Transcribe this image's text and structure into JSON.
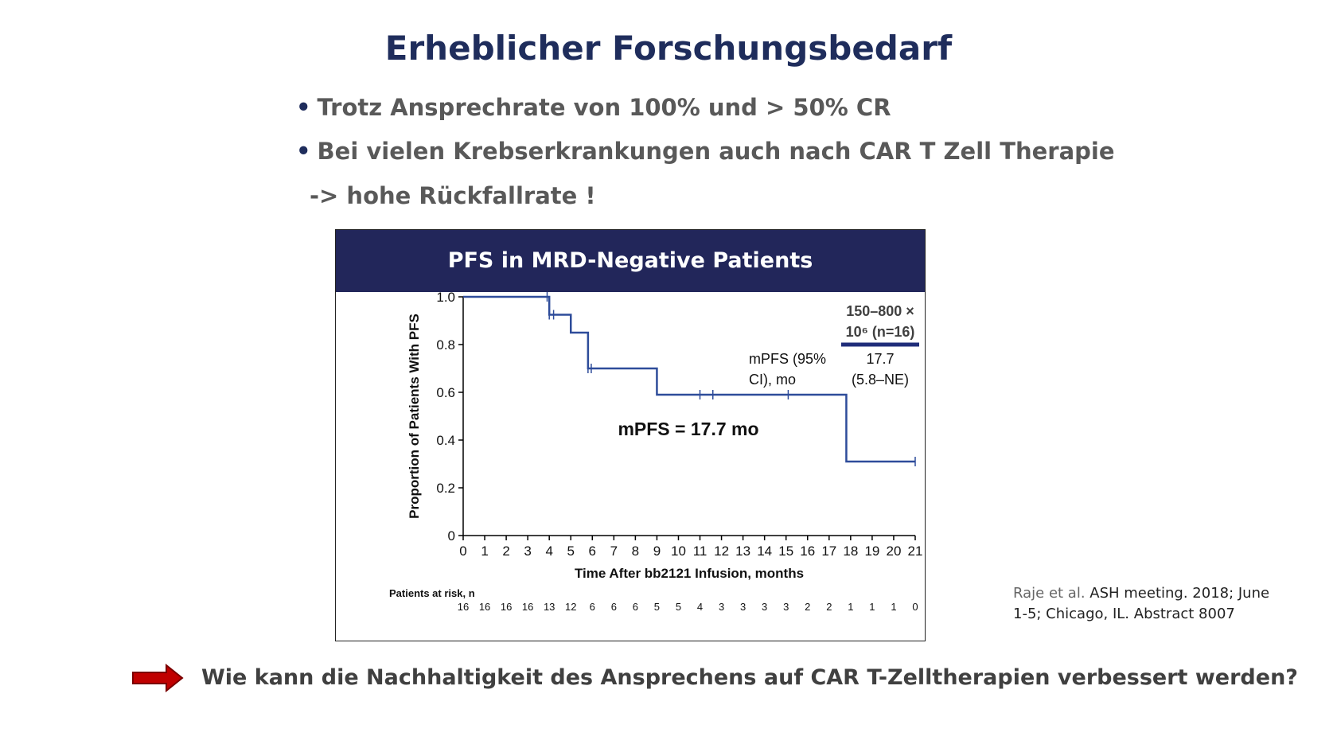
{
  "slide": {
    "title": "Erheblicher Forschungsbedarf",
    "bullets": [
      "Trotz Ansprechrate von 100% und > 50% CR",
      "Bei vielen Krebserkrankungen auch nach CAR T Zell Therapie"
    ],
    "continuation": "-> hohe Rückfallrate !",
    "question": "Wie kann die Nachhaltigkeit des Ansprechens auf CAR T-Zelltherapien verbessert werden?",
    "citation": {
      "author": "Raje et al.",
      "text": " ASH meeting. 2018; June 1-5; Chicago, IL. Abstract 8007"
    },
    "colors": {
      "title": "#1f2d5c",
      "header_bg": "#22265a",
      "curve": "#2e4c9a",
      "arrow": "#c00000"
    }
  },
  "chart_data": {
    "type": "line",
    "title": "PFS in MRD-Negative Patients",
    "xlabel": "Time After bb2121 Infusion, months",
    "ylabel": "Proportion of Patients With PFS",
    "xlim": [
      0,
      21
    ],
    "ylim": [
      0,
      1.0
    ],
    "x_ticks": [
      0,
      1,
      2,
      3,
      4,
      5,
      6,
      7,
      8,
      9,
      10,
      11,
      12,
      13,
      14,
      15,
      16,
      17,
      18,
      19,
      20,
      21
    ],
    "y_ticks": [
      "0",
      "0.2",
      "0.4",
      "0.6",
      "0.8",
      "1.0"
    ],
    "series": [
      {
        "name": "150–800 × 10⁶ (n=16)",
        "step_x": [
          0,
          4,
          5,
          5.8,
          9,
          17.8,
          21
        ],
        "step_y": [
          1.0,
          0.925,
          0.85,
          0.7,
          0.59,
          0.31,
          0.31
        ],
        "censor_x": [
          3.9,
          4.0,
          4.2,
          5.8,
          5.95,
          11.0,
          11.6,
          15.1,
          21.0
        ],
        "censor_y": [
          1.0,
          0.925,
          0.925,
          0.7,
          0.7,
          0.59,
          0.59,
          0.59,
          0.31
        ]
      }
    ],
    "legend": {
      "label_line1": "150–800 ×",
      "label_line2": "10⁶ (n=16)",
      "row_label_line1": "mPFS (95%",
      "row_label_line2": "CI), mo",
      "value_line1": "17.7",
      "value_line2": "(5.8–NE)"
    },
    "annotation": "mPFS = 17.7 mo",
    "risk_table": {
      "label": "Patients at risk, n",
      "values": [
        16,
        16,
        16,
        16,
        13,
        12,
        6,
        6,
        6,
        5,
        5,
        4,
        3,
        3,
        3,
        3,
        2,
        2,
        1,
        1,
        1,
        0
      ]
    }
  }
}
